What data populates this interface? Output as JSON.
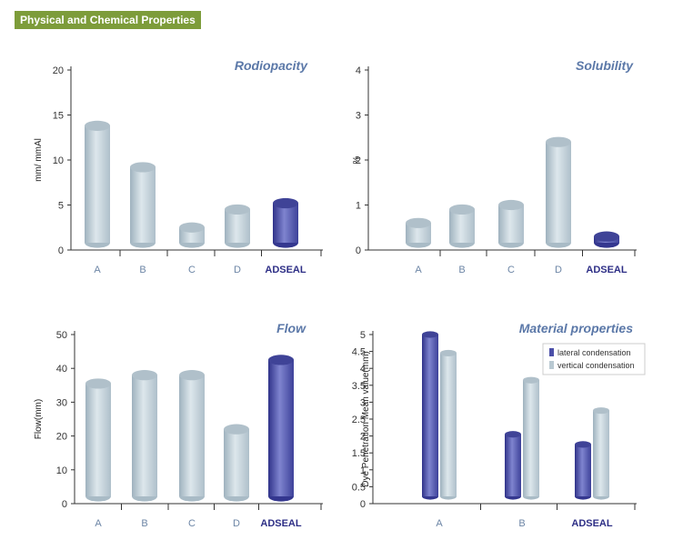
{
  "header": {
    "title": "Physical and Chemical Properties"
  },
  "colors": {
    "banner": "#7d9c3a",
    "title": "#5b78a8",
    "gray_body": "#c3d1d9",
    "gray_top": "#b0c0ca",
    "blue_body": "#4b4fa8",
    "blue_top": "#3f4397",
    "highlight_label": "#2e2f86",
    "category_label": "#6d86a6"
  },
  "chart_data": [
    {
      "type": "bar",
      "title": "Rodiopacity",
      "ylabel": "mm/ mmAl",
      "xlabel": "",
      "categories": [
        "A",
        "B",
        "C",
        "D",
        "ADSEAL"
      ],
      "values": [
        13.8,
        9.2,
        2.5,
        4.5,
        5.2
      ],
      "highlight": "ADSEAL",
      "ylim": [
        0,
        20
      ],
      "yticks": [
        "0",
        "5",
        "10",
        "15",
        "20"
      ],
      "grid": false
    },
    {
      "type": "bar",
      "title": "Solubility",
      "ylabel": "%",
      "xlabel": "",
      "categories": [
        "A",
        "B",
        "C",
        "D",
        "ADSEAL"
      ],
      "values": [
        0.6,
        0.9,
        1.0,
        2.4,
        0.3
      ],
      "highlight": "ADSEAL",
      "ylim": [
        0,
        4
      ],
      "yticks": [
        "0",
        "1",
        "2",
        "3",
        "4"
      ],
      "grid": false
    },
    {
      "type": "bar",
      "title": "Flow",
      "ylabel": "Flow(mm)",
      "xlabel": "",
      "categories": [
        "A",
        "B",
        "C",
        "D",
        "ADSEAL"
      ],
      "values": [
        35.5,
        38,
        38,
        22,
        42.5
      ],
      "highlight": "ADSEAL",
      "ylim": [
        0,
        50
      ],
      "yticks": [
        "0",
        "10",
        "20",
        "30",
        "40",
        "50"
      ],
      "grid": false
    },
    {
      "type": "bar",
      "title": "Material properties",
      "ylabel": "Dye Penetration Mean value(mm)",
      "xlabel": "",
      "categories": [
        "A",
        "B",
        "ADSEAL"
      ],
      "series": [
        {
          "name": "lateral condensation",
          "values": [
            5.0,
            2.05,
            1.75
          ]
        },
        {
          "name": "vertical condensation",
          "values": [
            4.45,
            3.65,
            2.75
          ]
        }
      ],
      "highlight": "ADSEAL",
      "ylim": [
        0,
        5
      ],
      "yticks": [
        "0",
        "0.5",
        "1",
        "1.5",
        "2",
        "2.5",
        "3",
        "3.5",
        "4",
        "4.5",
        "5"
      ],
      "legend_position": "top-right",
      "grid": false
    }
  ]
}
